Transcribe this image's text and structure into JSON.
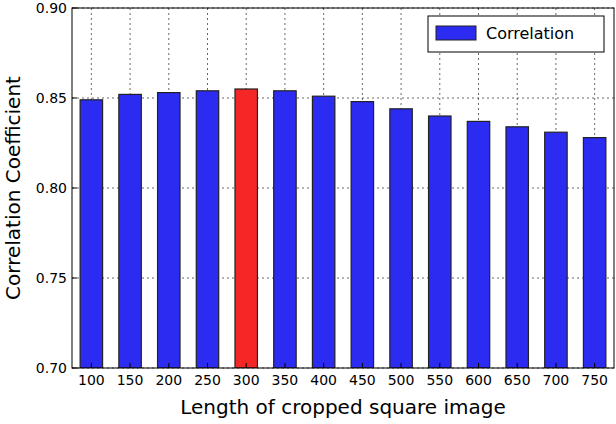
{
  "chart_data": {
    "type": "bar",
    "x_label": "Length of cropped square image",
    "y_label": "Correlation Coefficient",
    "categories": [
      "100",
      "150",
      "200",
      "250",
      "300",
      "350",
      "400",
      "450",
      "500",
      "550",
      "600",
      "650",
      "700",
      "750"
    ],
    "series": [
      {
        "name": "Correlation",
        "color": "#2b2bf2",
        "colors": [
          "#2b2bf2",
          "#2b2bf2",
          "#2b2bf2",
          "#2b2bf2",
          "#f52626",
          "#2b2bf2",
          "#2b2bf2",
          "#2b2bf2",
          "#2b2bf2",
          "#2b2bf2",
          "#2b2bf2",
          "#2b2bf2",
          "#2b2bf2",
          "#2b2bf2"
        ],
        "values": [
          0.849,
          0.852,
          0.853,
          0.854,
          0.855,
          0.854,
          0.851,
          0.848,
          0.844,
          0.84,
          0.837,
          0.834,
          0.831,
          0.828
        ]
      }
    ],
    "ylim": [
      0.7,
      0.9
    ],
    "yticks": [
      {
        "value": 0.7,
        "label": "0.70"
      },
      {
        "value": 0.75,
        "label": "0.75"
      },
      {
        "value": 0.8,
        "label": "0.80"
      },
      {
        "value": 0.85,
        "label": "0.85"
      },
      {
        "value": 0.9,
        "label": "0.90"
      }
    ],
    "grid": true,
    "legend": "upper right"
  }
}
